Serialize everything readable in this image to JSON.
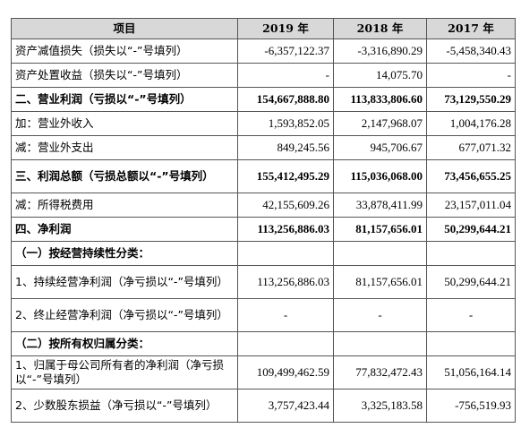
{
  "table": {
    "header": {
      "item": "项目",
      "y2019": "2019 年",
      "y2018": "2018 年",
      "y2017": "2017 年"
    },
    "rows": [
      {
        "label": "资产减值损失（损失以“-”号填列）",
        "v2019": "-6,357,122.37",
        "v2018": "-3,316,890.29",
        "v2017": "-5,458,340.43"
      },
      {
        "label": "资产处置收益（损失以“-”号填列）",
        "v2019": "-",
        "v2018": "14,075.70",
        "v2017": "-"
      },
      {
        "label": "二、营业利润（亏损以“-”号填列）",
        "v2019": "154,667,888.80",
        "v2018": "113,833,806.60",
        "v2017": "73,129,550.29"
      },
      {
        "label": "加：营业外收入",
        "v2019": "1,593,852.05",
        "v2018": "2,147,968.07",
        "v2017": "1,004,176.28"
      },
      {
        "label": "减：营业外支出",
        "v2019": "849,245.56",
        "v2018": "945,706.67",
        "v2017": "677,071.32"
      },
      {
        "label": "三、利润总额（亏损总额以“-”号填列）",
        "v2019": "155,412,495.29",
        "v2018": "115,036,068.00",
        "v2017": "73,456,655.25"
      },
      {
        "label": "减：所得税费用",
        "v2019": "42,155,609.26",
        "v2018": "33,878,411.99",
        "v2017": "23,157,011.04"
      },
      {
        "label": "四、净利润",
        "v2019": "113,256,886.03",
        "v2018": "81,157,656.01",
        "v2017": "50,299,644.21"
      },
      {
        "label": "（一）按经营持续性分类：",
        "v2019": "",
        "v2018": "",
        "v2017": ""
      },
      {
        "label": "1、持续经营净利润（净亏损以“-”号填列）",
        "v2019": "113,256,886.03",
        "v2018": "81,157,656.01",
        "v2017": "50,299,644.21"
      },
      {
        "label": "2、终止经营净利润（净亏损以“-”号填列）",
        "v2019": "-",
        "v2018": "-",
        "v2017": "-"
      },
      {
        "label": "（二）按所有权归属分类：",
        "v2019": "",
        "v2018": "",
        "v2017": ""
      },
      {
        "label": "1、归属于母公司所有者的净利润（净亏损以“-”号填列）",
        "v2019": "109,499,462.59",
        "v2018": "77,832,472.43",
        "v2017": "51,056,164.14"
      },
      {
        "label": "2、少数股东损益（净亏损以“-”号填列）",
        "v2019": "3,757,423.44",
        "v2018": "3,325,183.58",
        "v2017": "-756,519.93"
      }
    ]
  }
}
